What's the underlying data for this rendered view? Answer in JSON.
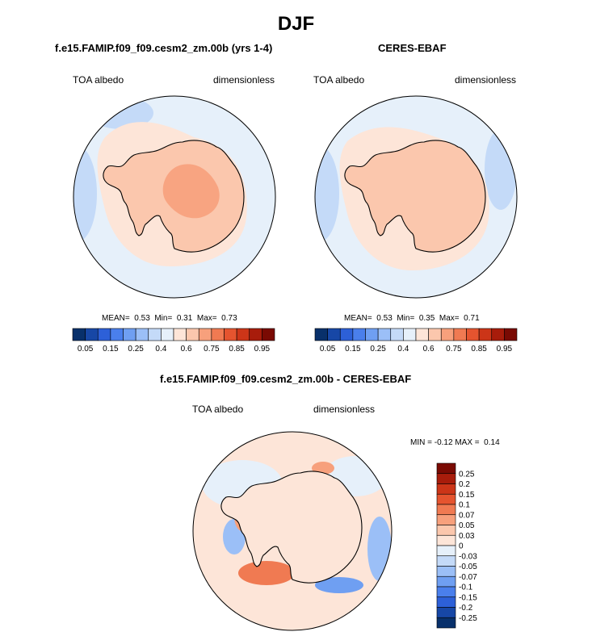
{
  "title": "DJF",
  "panels": [
    {
      "id": "model",
      "title": "f.e15.FAMIP.f09_f09.cesm2_zm.00b (yrs 1-4)",
      "left_label": "TOA albedo",
      "right_label": "dimensionless",
      "stats": {
        "mean_label": "MEAN=",
        "mean": "0.53",
        "min_label": "Min=",
        "min": "0.31",
        "max_label": "Max=",
        "max": "0.73"
      }
    },
    {
      "id": "obs",
      "title": "CERES-EBAF",
      "left_label": "TOA albedo",
      "right_label": "dimensionless",
      "stats": {
        "mean_label": "MEAN=",
        "mean": "0.53",
        "min_label": "Min=",
        "min": "0.35",
        "max_label": "Max=",
        "max": "0.71"
      }
    },
    {
      "id": "diff",
      "title": "f.e15.FAMIP.f09_f09.cesm2_zm.00b - CERES-EBAF",
      "left_label": "TOA albedo",
      "right_label": "dimensionless",
      "stats": {
        "min_label": "MIN =",
        "min": "-0.12",
        "max_label": "MAX =",
        "max": "0.14"
      }
    }
  ],
  "chart_data": [
    {
      "type": "heatmap",
      "projection": "south polar stereographic",
      "title": "f.e15.FAMIP.f09_f09.cesm2_zm.00b (yrs 1-4)",
      "variable": "TOA albedo",
      "units": "dimensionless",
      "mean": 0.53,
      "min": 0.31,
      "max": 0.73,
      "colorbar": {
        "orientation": "horizontal",
        "tick_labels": [
          "0.05",
          "0.15",
          "0.25",
          "0.4",
          "0.6",
          "0.75",
          "0.85",
          "0.95"
        ],
        "colors": [
          "#08306b",
          "#1747a6",
          "#2d60d8",
          "#4a7fec",
          "#6f9ff2",
          "#9bbff7",
          "#c4daf8",
          "#e6f0fa",
          "#fde5d8",
          "#fbc7ad",
          "#f7a07c",
          "#f07a52",
          "#e5542f",
          "#cc3518",
          "#a81c0b",
          "#7a0a03"
        ]
      }
    },
    {
      "type": "heatmap",
      "projection": "south polar stereographic",
      "title": "CERES-EBAF",
      "variable": "TOA albedo",
      "units": "dimensionless",
      "mean": 0.53,
      "min": 0.35,
      "max": 0.71,
      "colorbar": {
        "orientation": "horizontal",
        "tick_labels": [
          "0.05",
          "0.15",
          "0.25",
          "0.4",
          "0.6",
          "0.75",
          "0.85",
          "0.95"
        ],
        "colors": [
          "#08306b",
          "#1747a6",
          "#2d60d8",
          "#4a7fec",
          "#6f9ff2",
          "#9bbff7",
          "#c4daf8",
          "#e6f0fa",
          "#fde5d8",
          "#fbc7ad",
          "#f7a07c",
          "#f07a52",
          "#e5542f",
          "#cc3518",
          "#a81c0b",
          "#7a0a03"
        ]
      }
    },
    {
      "type": "heatmap",
      "projection": "south polar stereographic",
      "title": "f.e15.FAMIP.f09_f09.cesm2_zm.00b - CERES-EBAF",
      "variable": "TOA albedo",
      "units": "dimensionless",
      "min": -0.12,
      "max": 0.14,
      "colorbar": {
        "orientation": "vertical",
        "tick_labels": [
          "0.25",
          "0.2",
          "0.15",
          "0.1",
          "0.07",
          "0.05",
          "0.03",
          "0",
          "-0.03",
          "-0.05",
          "-0.07",
          "-0.1",
          "-0.15",
          "-0.2",
          "-0.25"
        ],
        "colors": [
          "#7a0a03",
          "#a81c0b",
          "#cc3518",
          "#e5542f",
          "#f07a52",
          "#f7a07c",
          "#fbc7ad",
          "#fde5d8",
          "#e6f0fa",
          "#c4daf8",
          "#9bbff7",
          "#6f9ff2",
          "#4a7fec",
          "#2d60d8",
          "#1747a6",
          "#08306b"
        ]
      }
    }
  ]
}
